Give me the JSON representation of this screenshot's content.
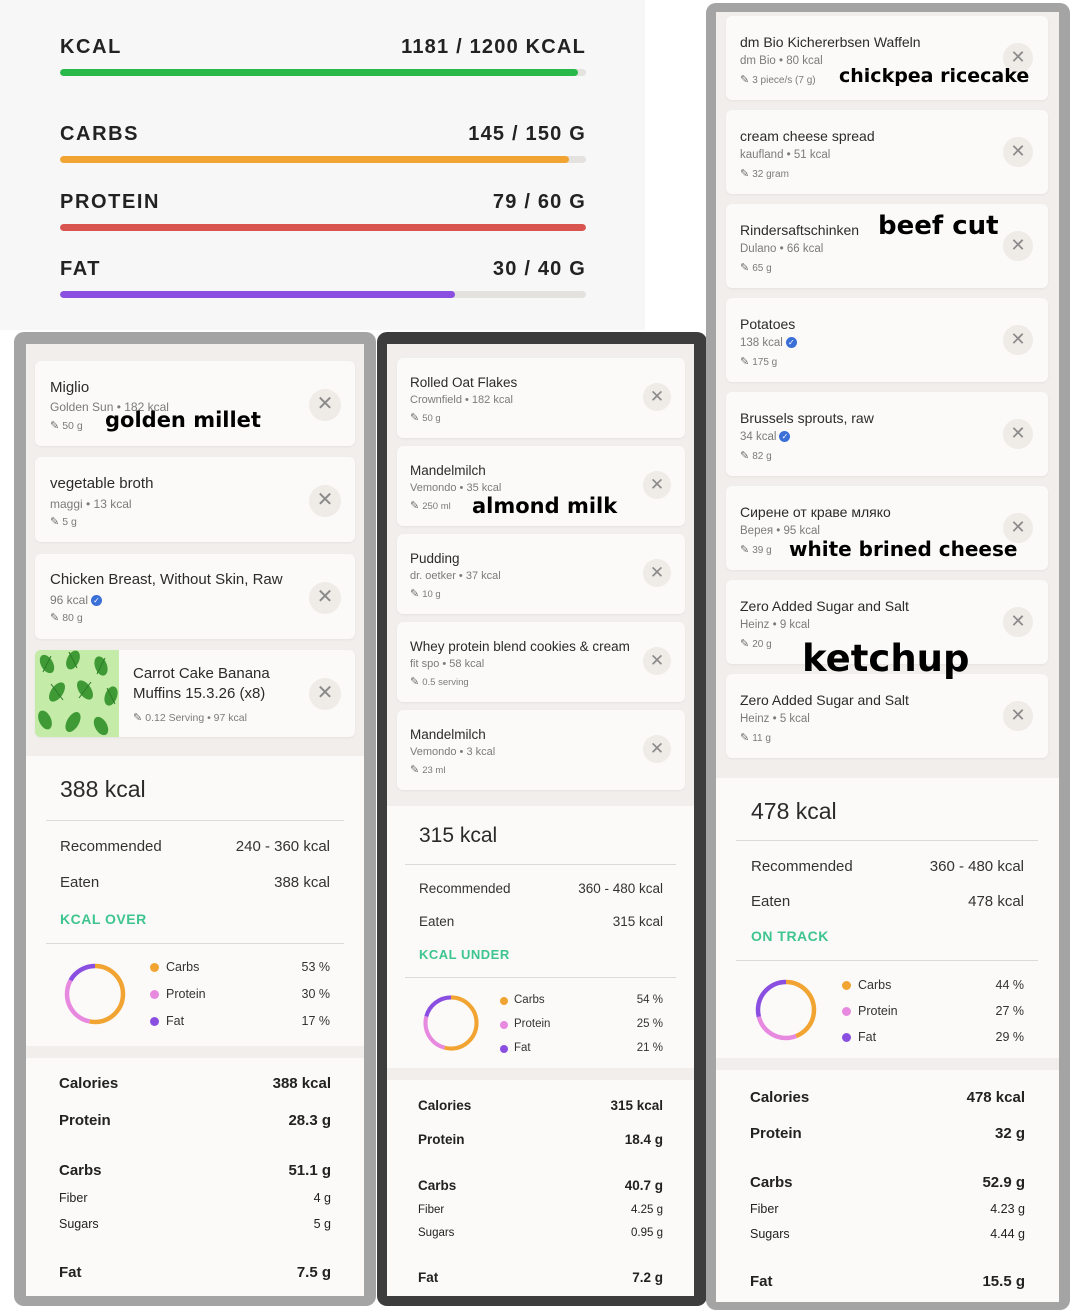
{
  "macros": [
    {
      "label": "KCAL",
      "value": "1181 / 1200 KCAL",
      "progress": 0.984,
      "color": "#29b94a"
    },
    {
      "label": "CARBS",
      "value": "145 / 150 G",
      "progress": 0.967,
      "color": "#f2a432"
    },
    {
      "label": "PROTEIN",
      "value": "79 / 60 G",
      "progress": 1.0,
      "color": "#d9534f"
    },
    {
      "label": "FAT",
      "value": "30 / 40 G",
      "progress": 0.75,
      "color": "#8a4fe0"
    }
  ],
  "columns": [
    {
      "foods": [
        {
          "name": "Miglio",
          "sub": "Golden Sun • 182 kcal",
          "portion": "50 g"
        },
        {
          "name": "vegetable broth",
          "sub": "maggi • 13 kcal",
          "portion": "5 g"
        },
        {
          "name": "Chicken Breast, Without Skin, Raw",
          "sub": "96 kcal",
          "portion": "80 g"
        },
        {
          "name": "Carrot Cake Banana",
          "name2": "Muffins 15.3.26 (x8)",
          "portion": "0.12 Serving • 97 kcal"
        }
      ],
      "summary": {
        "kcal": "388 kcal",
        "recommended_label": "Recommended",
        "recommended_value": "240 - 360 kcal",
        "eaten_label": "Eaten",
        "eaten_value": "388 kcal",
        "status": "KCAL OVER",
        "legend": [
          {
            "label": "Carbs",
            "pct": "53 %",
            "value": 53,
            "color": "#f2a432"
          },
          {
            "label": "Protein",
            "pct": "30 %",
            "value": 30,
            "color": "#e889e0"
          },
          {
            "label": "Fat",
            "pct": "17 %",
            "value": 17,
            "color": "#8a4fe0"
          }
        ],
        "nutrients": {
          "calories_label": "Calories",
          "calories": "388 kcal",
          "protein_label": "Protein",
          "protein": "28.3 g",
          "carbs_label": "Carbs",
          "carbs": "51.1 g",
          "fiber_label": "Fiber",
          "fiber": "4 g",
          "sugars_label": "Sugars",
          "sugars": "5 g",
          "fat_label": "Fat",
          "fat": "7.5 g"
        }
      }
    },
    {
      "foods": [
        {
          "name": "Rolled Oat Flakes",
          "sub": "Crownfield • 182 kcal",
          "portion": "50 g"
        },
        {
          "name": "Mandelmilch",
          "sub": "Vemondo • 35 kcal",
          "portion": "250 ml"
        },
        {
          "name": "Pudding",
          "sub": "dr. oetker • 37 kcal",
          "portion": "10 g"
        },
        {
          "name": "Whey protein blend cookies & cream",
          "sub": "fit spo • 58 kcal",
          "portion": "0.5 serving"
        },
        {
          "name": "Mandelmilch",
          "sub": "Vemondo • 3 kcal",
          "portion": "23 ml"
        }
      ],
      "summary": {
        "kcal": "315 kcal",
        "recommended_label": "Recommended",
        "recommended_value": "360 - 480 kcal",
        "eaten_label": "Eaten",
        "eaten_value": "315 kcal",
        "status": "KCAL UNDER",
        "legend": [
          {
            "label": "Carbs",
            "pct": "54 %",
            "value": 54,
            "color": "#f2a432"
          },
          {
            "label": "Protein",
            "pct": "25 %",
            "value": 25,
            "color": "#e889e0"
          },
          {
            "label": "Fat",
            "pct": "21 %",
            "value": 21,
            "color": "#8a4fe0"
          }
        ],
        "nutrients": {
          "calories_label": "Calories",
          "calories": "315 kcal",
          "protein_label": "Protein",
          "protein": "18.4 g",
          "carbs_label": "Carbs",
          "carbs": "40.7 g",
          "fiber_label": "Fiber",
          "fiber": "4.25 g",
          "sugars_label": "Sugars",
          "sugars": "0.95 g",
          "fat_label": "Fat",
          "fat": "7.2 g"
        }
      }
    },
    {
      "foods": [
        {
          "name": "dm Bio Kichererbsen Waffeln",
          "sub": "dm Bio • 80 kcal",
          "portion": "3 piece/s (7 g)"
        },
        {
          "name": "cream cheese spread",
          "sub": "kaufland • 51 kcal",
          "portion": "32 gram"
        },
        {
          "name": "Rindersaftschinken",
          "sub": "Dulano • 66 kcal",
          "portion": "65 g"
        },
        {
          "name": "Potatoes",
          "sub": "138 kcal",
          "portion": "175 g"
        },
        {
          "name": "Brussels sprouts, raw",
          "sub": "34 kcal",
          "portion": "82 g"
        },
        {
          "name": "Сирене от краве мляко",
          "sub": "Верея • 95 kcal",
          "portion": "39 g"
        },
        {
          "name": "Zero Added Sugar and Salt",
          "sub": "Heinz • 9 kcal",
          "portion": "20 g"
        },
        {
          "name": "Zero Added Sugar and Salt",
          "sub": "Heinz • 5 kcal",
          "portion": "11 g"
        }
      ],
      "summary": {
        "kcal": "478 kcal",
        "recommended_label": "Recommended",
        "recommended_value": "360 - 480 kcal",
        "eaten_label": "Eaten",
        "eaten_value": "478 kcal",
        "status": "ON TRACK",
        "legend": [
          {
            "label": "Carbs",
            "pct": "44 %",
            "value": 44,
            "color": "#f2a432"
          },
          {
            "label": "Protein",
            "pct": "27 %",
            "value": 27,
            "color": "#e889e0"
          },
          {
            "label": "Fat",
            "pct": "29 %",
            "value": 29,
            "color": "#8a4fe0"
          }
        ],
        "nutrients": {
          "calories_label": "Calories",
          "calories": "478 kcal",
          "protein_label": "Protein",
          "protein": "32 g",
          "carbs_label": "Carbs",
          "carbs": "52.9 g",
          "fiber_label": "Fiber",
          "fiber": "4.23 g",
          "sugars_label": "Sugars",
          "sugars": "4.44 g",
          "fat_label": "Fat",
          "fat": "15.5 g"
        }
      }
    }
  ],
  "annotations": {
    "golden_millet": "golden millet",
    "almond_milk": "almond milk",
    "chickpea_ricecake": "chickpea ricecake",
    "beef_cut": "beef cut",
    "white_brined_cheese": "white brined cheese",
    "ketchup": "ketchup"
  },
  "icons": {
    "remove": "close-icon",
    "portion": "pencil-icon",
    "verified": "verified-check-icon"
  },
  "colors": {
    "status_green": "#3ec58f",
    "frame_left": "#a4a4a4",
    "frame_middle": "#3d3d3d",
    "frame_right": "#a4a4a4"
  }
}
